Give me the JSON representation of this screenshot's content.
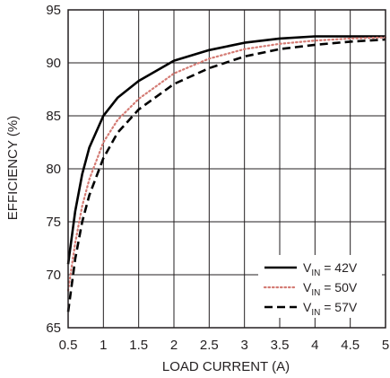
{
  "chart_data": {
    "type": "line",
    "title": "",
    "xlabel": "LOAD CURRENT (A)",
    "ylabel": "EFFICIENCY (%)",
    "xlim": [
      0.5,
      5
    ],
    "ylim": [
      65,
      95
    ],
    "x_ticks": [
      0.5,
      1,
      1.5,
      2,
      2.5,
      3,
      3.5,
      4,
      4.5,
      5
    ],
    "y_ticks": [
      65,
      70,
      75,
      80,
      85,
      90,
      95
    ],
    "grid": true,
    "legend_position": "bottom-right",
    "series": [
      {
        "name": "V_IN = 42V",
        "label_main": "V",
        "label_sub": "IN",
        "label_tail": " = 42V",
        "style": "solid",
        "color": "#000000",
        "x": [
          0.5,
          0.6,
          0.7,
          0.8,
          1.0,
          1.2,
          1.5,
          2.0,
          2.5,
          3.0,
          3.5,
          4.0,
          4.5,
          5.0
        ],
        "y": [
          71.0,
          76.0,
          79.5,
          82.0,
          85.0,
          86.7,
          88.3,
          90.2,
          91.2,
          91.9,
          92.3,
          92.5,
          92.5,
          92.5
        ]
      },
      {
        "name": "V_IN = 50V",
        "label_main": "V",
        "label_sub": "IN",
        "label_tail": " = 50V",
        "style": "dotted",
        "color": "#d47b74",
        "x": [
          0.5,
          0.6,
          0.7,
          0.8,
          1.0,
          1.2,
          1.5,
          2.0,
          2.5,
          3.0,
          3.5,
          4.0,
          4.5,
          5.0
        ],
        "y": [
          68.5,
          73.0,
          76.5,
          79.0,
          82.5,
          84.6,
          86.6,
          89.0,
          90.4,
          91.3,
          91.8,
          92.1,
          92.3,
          92.4
        ]
      },
      {
        "name": "V_IN = 57V",
        "label_main": "V",
        "label_sub": "IN",
        "label_tail": " = 57V",
        "style": "dashed",
        "color": "#000000",
        "x": [
          0.5,
          0.6,
          0.7,
          0.8,
          1.0,
          1.2,
          1.5,
          2.0,
          2.5,
          3.0,
          3.5,
          4.0,
          4.5,
          5.0
        ],
        "y": [
          66.5,
          71.5,
          75.0,
          77.5,
          81.0,
          83.4,
          85.6,
          88.0,
          89.5,
          90.6,
          91.3,
          91.7,
          92.0,
          92.2
        ]
      }
    ]
  }
}
